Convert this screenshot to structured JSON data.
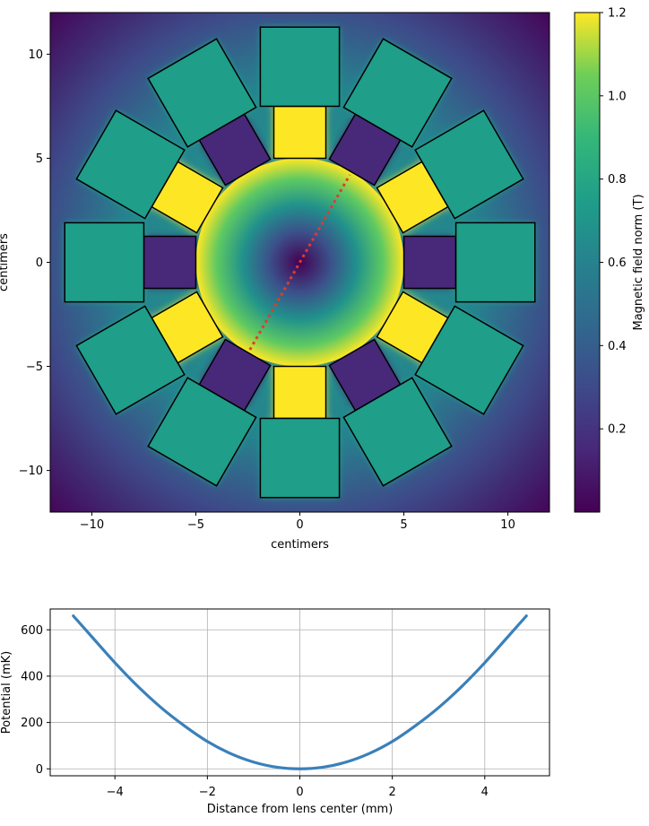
{
  "chart_data": [
    {
      "type": "heatmap",
      "xlabel": "centimers",
      "ylabel": "centimers",
      "xlim": [
        -12,
        12
      ],
      "ylim": [
        -12,
        12
      ],
      "xticks": [
        -10,
        -5,
        0,
        5,
        10
      ],
      "yticks": [
        -10,
        -5,
        0,
        5,
        10
      ],
      "colorbar": {
        "label": "Magnetic field norm (T)",
        "range": [
          0,
          1.2
        ],
        "ticks": [
          0.2,
          0.4,
          0.6,
          0.8,
          1.0,
          1.2
        ],
        "colormap": "viridis"
      },
      "bore_radius": 5,
      "annotation_line": {
        "color": "#e23b2a",
        "style": "dotted",
        "points": [
          [
            -2.4,
            -4.2
          ],
          [
            2.4,
            4.2
          ]
        ]
      },
      "magnets": [
        {
          "ring": "inner",
          "angle_deg": 0,
          "width": 2.5,
          "radial_range": [
            5.0,
            7.5
          ],
          "field": 0.14
        },
        {
          "ring": "inner",
          "angle_deg": 30,
          "width": 2.5,
          "radial_range": [
            5.0,
            7.5
          ],
          "field": 1.2
        },
        {
          "ring": "inner",
          "angle_deg": 60,
          "width": 2.5,
          "radial_range": [
            5.0,
            7.5
          ],
          "field": 0.14
        },
        {
          "ring": "inner",
          "angle_deg": 90,
          "width": 2.5,
          "radial_range": [
            5.0,
            7.5
          ],
          "field": 1.2
        },
        {
          "ring": "inner",
          "angle_deg": 120,
          "width": 2.5,
          "radial_range": [
            5.0,
            7.5
          ],
          "field": 0.14
        },
        {
          "ring": "inner",
          "angle_deg": 150,
          "width": 2.5,
          "radial_range": [
            5.0,
            7.5
          ],
          "field": 1.2
        },
        {
          "ring": "inner",
          "angle_deg": 180,
          "width": 2.5,
          "radial_range": [
            5.0,
            7.5
          ],
          "field": 0.14
        },
        {
          "ring": "inner",
          "angle_deg": 210,
          "width": 2.5,
          "radial_range": [
            5.0,
            7.5
          ],
          "field": 1.2
        },
        {
          "ring": "inner",
          "angle_deg": 240,
          "width": 2.5,
          "radial_range": [
            5.0,
            7.5
          ],
          "field": 0.14
        },
        {
          "ring": "inner",
          "angle_deg": 270,
          "width": 2.5,
          "radial_range": [
            5.0,
            7.5
          ],
          "field": 1.2
        },
        {
          "ring": "inner",
          "angle_deg": 300,
          "width": 2.5,
          "radial_range": [
            5.0,
            7.5
          ],
          "field": 0.14
        },
        {
          "ring": "inner",
          "angle_deg": 330,
          "width": 2.5,
          "radial_range": [
            5.0,
            7.5
          ],
          "field": 1.2
        },
        {
          "ring": "outer",
          "angle_deg": 0,
          "width": 3.8,
          "radial_range": [
            7.5,
            11.3
          ],
          "field": 0.6
        },
        {
          "ring": "outer",
          "angle_deg": 30,
          "width": 3.8,
          "radial_range": [
            7.5,
            11.3
          ],
          "field": 0.7
        },
        {
          "ring": "outer",
          "angle_deg": 60,
          "width": 3.8,
          "radial_range": [
            7.5,
            11.3
          ],
          "field": 0.6
        },
        {
          "ring": "outer",
          "angle_deg": 90,
          "width": 3.8,
          "radial_range": [
            7.5,
            11.3
          ],
          "field": 0.7
        },
        {
          "ring": "outer",
          "angle_deg": 120,
          "width": 3.8,
          "radial_range": [
            7.5,
            11.3
          ],
          "field": 0.6
        },
        {
          "ring": "outer",
          "angle_deg": 150,
          "width": 3.8,
          "radial_range": [
            7.5,
            11.3
          ],
          "field": 0.7
        },
        {
          "ring": "outer",
          "angle_deg": 180,
          "width": 3.8,
          "radial_range": [
            7.5,
            11.3
          ],
          "field": 0.6
        },
        {
          "ring": "outer",
          "angle_deg": 210,
          "width": 3.8,
          "radial_range": [
            7.5,
            11.3
          ],
          "field": 0.7
        },
        {
          "ring": "outer",
          "angle_deg": 240,
          "width": 3.8,
          "radial_range": [
            7.5,
            11.3
          ],
          "field": 0.6
        },
        {
          "ring": "outer",
          "angle_deg": 270,
          "width": 3.8,
          "radial_range": [
            7.5,
            11.3
          ],
          "field": 0.7
        },
        {
          "ring": "outer",
          "angle_deg": 300,
          "width": 3.8,
          "radial_range": [
            7.5,
            11.3
          ],
          "field": 0.6
        },
        {
          "ring": "outer",
          "angle_deg": 330,
          "width": 3.8,
          "radial_range": [
            7.5,
            11.3
          ],
          "field": 0.7
        }
      ]
    },
    {
      "type": "line",
      "xlabel": "Distance from lens center (mm)",
      "ylabel": "Potential (mK)",
      "xlim": [
        -5.4,
        5.4
      ],
      "ylim": [
        -30,
        690
      ],
      "xticks": [
        -4,
        -2,
        0,
        2,
        4
      ],
      "yticks": [
        0,
        200,
        400,
        600
      ],
      "grid": true,
      "series": [
        {
          "color": "#3a80ba",
          "x": [
            -4.9,
            -4.5,
            -4.0,
            -3.5,
            -3.0,
            -2.5,
            -2.0,
            -1.5,
            -1.0,
            -0.5,
            0,
            0.5,
            1.0,
            1.5,
            2.0,
            2.5,
            3.0,
            3.5,
            4.0,
            4.5,
            4.9
          ],
          "y": [
            660,
            570,
            458,
            355,
            264,
            186,
            118,
            66,
            29,
            7,
            0,
            7,
            29,
            66,
            118,
            186,
            264,
            355,
            458,
            570,
            660
          ]
        }
      ]
    }
  ]
}
